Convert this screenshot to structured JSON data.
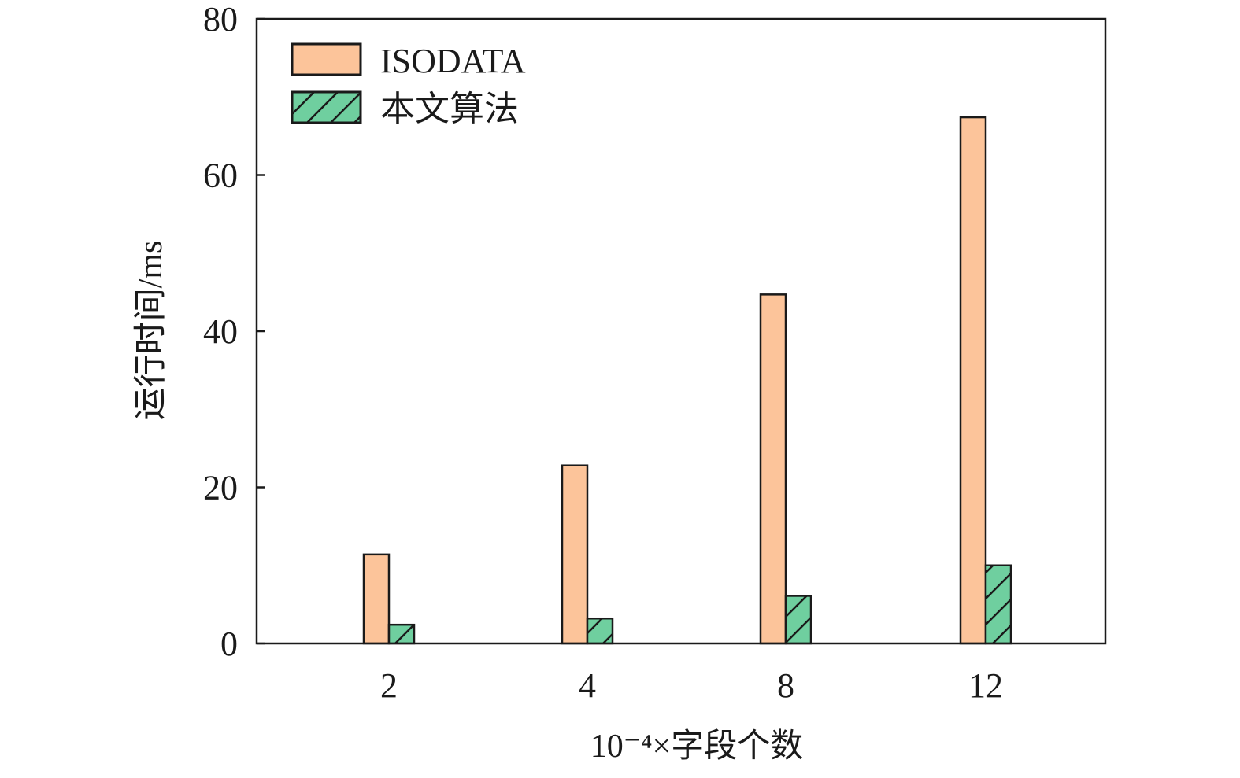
{
  "chart_data": {
    "type": "bar",
    "title": "",
    "xlabel": "10⁻⁴×字段个数",
    "ylabel": "运行时间/ms",
    "categories": [
      "2",
      "4",
      "8",
      "12"
    ],
    "ylim": [
      0,
      80
    ],
    "yticks": [
      "0",
      "20",
      "40",
      "60",
      "80"
    ],
    "grid": false,
    "legend_position": "top-left",
    "series": [
      {
        "name": "ISODATA",
        "values": [
          11.4,
          22.8,
          44.7,
          67.4
        ],
        "color": "#fcc49a",
        "hatch": false
      },
      {
        "name": "本文算法",
        "values": [
          2.4,
          3.2,
          6.1,
          10.0
        ],
        "color": "#6fcf9f",
        "hatch": true
      }
    ]
  }
}
